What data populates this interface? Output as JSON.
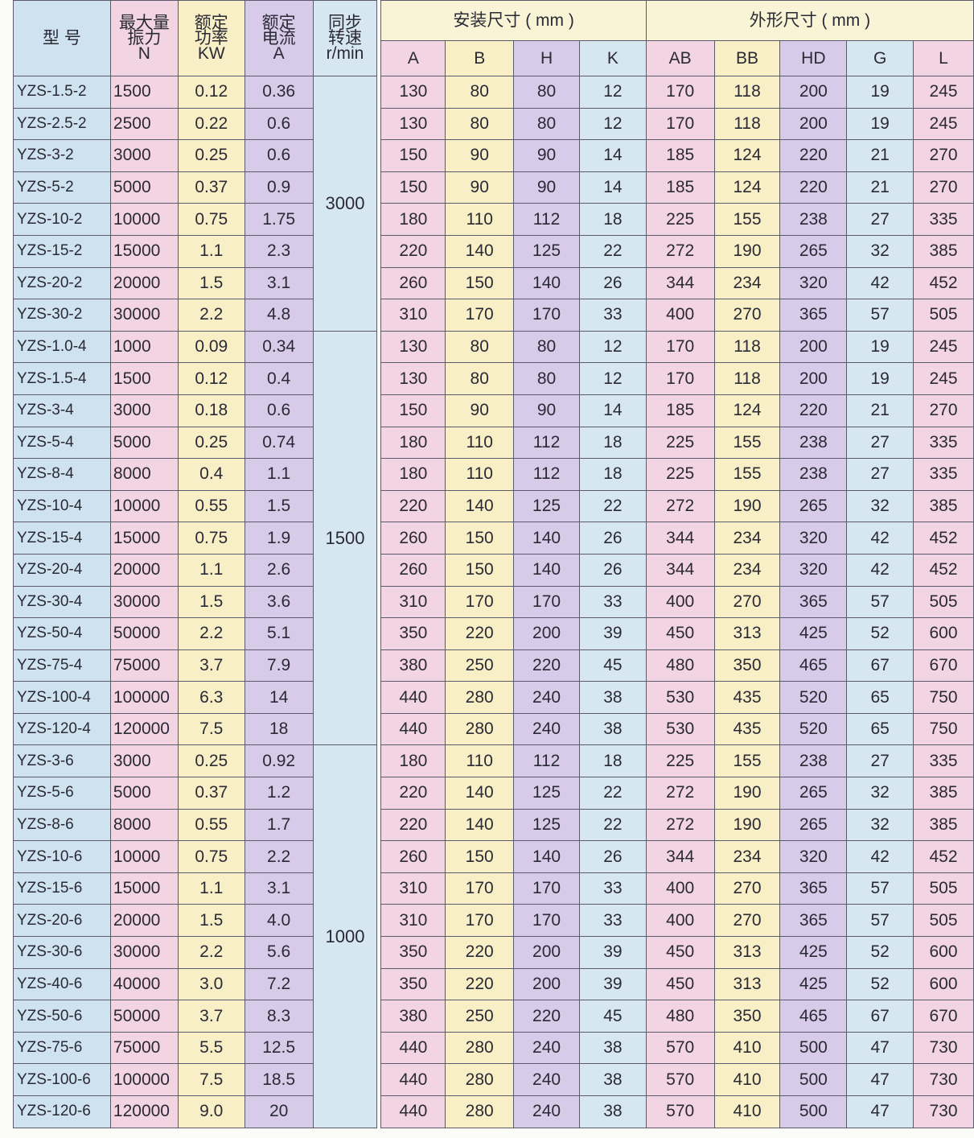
{
  "header": {
    "model": "型 号",
    "force": [
      "最大量",
      "振力",
      "N"
    ],
    "power": [
      "额定",
      "功率",
      "KW"
    ],
    "current": [
      "额定",
      "电流",
      "A"
    ],
    "speed": [
      "同步",
      "转速",
      "r/min"
    ],
    "install_group": "安装尺寸 ( mm )",
    "outline_group": "外形尺寸 ( mm )",
    "install_cols": [
      "A",
      "B",
      "H",
      "K"
    ],
    "outline_cols": [
      "AB",
      "BB",
      "HD",
      "G",
      "L"
    ]
  },
  "speed_groups": [
    {
      "speed": "3000",
      "rows": 8
    },
    {
      "speed": "1500",
      "rows": 13
    },
    {
      "speed": "1000",
      "rows": 12
    }
  ],
  "rows": [
    [
      "YZS-1.5-2",
      "1500",
      "0.12",
      "0.36",
      "130",
      "80",
      "80",
      "12",
      "170",
      "118",
      "200",
      "19",
      "245"
    ],
    [
      "YZS-2.5-2",
      "2500",
      "0.22",
      "0.6",
      "130",
      "80",
      "80",
      "12",
      "170",
      "118",
      "200",
      "19",
      "245"
    ],
    [
      "YZS-3-2",
      "3000",
      "0.25",
      "0.6",
      "150",
      "90",
      "90",
      "14",
      "185",
      "124",
      "220",
      "21",
      "270"
    ],
    [
      "YZS-5-2",
      "5000",
      "0.37",
      "0.9",
      "150",
      "90",
      "90",
      "14",
      "185",
      "124",
      "220",
      "21",
      "270"
    ],
    [
      "YZS-10-2",
      "10000",
      "0.75",
      "1.75",
      "180",
      "110",
      "112",
      "18",
      "225",
      "155",
      "238",
      "27",
      "335"
    ],
    [
      "YZS-15-2",
      "15000",
      "1.1",
      "2.3",
      "220",
      "140",
      "125",
      "22",
      "272",
      "190",
      "265",
      "32",
      "385"
    ],
    [
      "YZS-20-2",
      "20000",
      "1.5",
      "3.1",
      "260",
      "150",
      "140",
      "26",
      "344",
      "234",
      "320",
      "42",
      "452"
    ],
    [
      "YZS-30-2",
      "30000",
      "2.2",
      "4.8",
      "310",
      "170",
      "170",
      "33",
      "400",
      "270",
      "365",
      "57",
      "505"
    ],
    [
      "YZS-1.0-4",
      "1000",
      "0.09",
      "0.34",
      "130",
      "80",
      "80",
      "12",
      "170",
      "118",
      "200",
      "19",
      "245"
    ],
    [
      "YZS-1.5-4",
      "1500",
      "0.12",
      "0.4",
      "130",
      "80",
      "80",
      "12",
      "170",
      "118",
      "200",
      "19",
      "245"
    ],
    [
      "YZS-3-4",
      "3000",
      "0.18",
      "0.6",
      "150",
      "90",
      "90",
      "14",
      "185",
      "124",
      "220",
      "21",
      "270"
    ],
    [
      "YZS-5-4",
      "5000",
      "0.25",
      "0.74",
      "180",
      "110",
      "112",
      "18",
      "225",
      "155",
      "238",
      "27",
      "335"
    ],
    [
      "YZS-8-4",
      "8000",
      "0.4",
      "1.1",
      "180",
      "110",
      "112",
      "18",
      "225",
      "155",
      "238",
      "27",
      "335"
    ],
    [
      "YZS-10-4",
      "10000",
      "0.55",
      "1.5",
      "220",
      "140",
      "125",
      "22",
      "272",
      "190",
      "265",
      "32",
      "385"
    ],
    [
      "YZS-15-4",
      "15000",
      "0.75",
      "1.9",
      "260",
      "150",
      "140",
      "26",
      "344",
      "234",
      "320",
      "42",
      "452"
    ],
    [
      "YZS-20-4",
      "20000",
      "1.1",
      "2.6",
      "260",
      "150",
      "140",
      "26",
      "344",
      "234",
      "320",
      "42",
      "452"
    ],
    [
      "YZS-30-4",
      "30000",
      "1.5",
      "3.6",
      "310",
      "170",
      "170",
      "33",
      "400",
      "270",
      "365",
      "57",
      "505"
    ],
    [
      "YZS-50-4",
      "50000",
      "2.2",
      "5.1",
      "350",
      "220",
      "200",
      "39",
      "450",
      "313",
      "425",
      "52",
      "600"
    ],
    [
      "YZS-75-4",
      "75000",
      "3.7",
      "7.9",
      "380",
      "250",
      "220",
      "45",
      "480",
      "350",
      "465",
      "67",
      "670"
    ],
    [
      "YZS-100-4",
      "100000",
      "6.3",
      "14",
      "440",
      "280",
      "240",
      "38",
      "530",
      "435",
      "520",
      "65",
      "750"
    ],
    [
      "YZS-120-4",
      "120000",
      "7.5",
      "18",
      "440",
      "280",
      "240",
      "38",
      "530",
      "435",
      "520",
      "65",
      "750"
    ],
    [
      "YZS-3-6",
      "3000",
      "0.25",
      "0.92",
      "180",
      "110",
      "112",
      "18",
      "225",
      "155",
      "238",
      "27",
      "335"
    ],
    [
      "YZS-5-6",
      "5000",
      "0.37",
      "1.2",
      "220",
      "140",
      "125",
      "22",
      "272",
      "190",
      "265",
      "32",
      "385"
    ],
    [
      "YZS-8-6",
      "8000",
      "0.55",
      "1.7",
      "220",
      "140",
      "125",
      "22",
      "272",
      "190",
      "265",
      "32",
      "385"
    ],
    [
      "YZS-10-6",
      "10000",
      "0.75",
      "2.2",
      "260",
      "150",
      "140",
      "26",
      "344",
      "234",
      "320",
      "42",
      "452"
    ],
    [
      "YZS-15-6",
      "15000",
      "1.1",
      "3.1",
      "310",
      "170",
      "170",
      "33",
      "400",
      "270",
      "365",
      "57",
      "505"
    ],
    [
      "YZS-20-6",
      "20000",
      "1.5",
      "4.0",
      "310",
      "170",
      "170",
      "33",
      "400",
      "270",
      "365",
      "57",
      "505"
    ],
    [
      "YZS-30-6",
      "30000",
      "2.2",
      "5.6",
      "350",
      "220",
      "200",
      "39",
      "450",
      "313",
      "425",
      "52",
      "600"
    ],
    [
      "YZS-40-6",
      "40000",
      "3.0",
      "7.2",
      "350",
      "220",
      "200",
      "39",
      "450",
      "313",
      "425",
      "52",
      "600"
    ],
    [
      "YZS-50-6",
      "50000",
      "3.7",
      "8.3",
      "380",
      "250",
      "220",
      "45",
      "480",
      "350",
      "465",
      "67",
      "670"
    ],
    [
      "YZS-75-6",
      "75000",
      "5.5",
      "12.5",
      "440",
      "280",
      "240",
      "38",
      "570",
      "410",
      "500",
      "47",
      "730"
    ],
    [
      "YZS-100-6",
      "100000",
      "7.5",
      "18.5",
      "440",
      "280",
      "240",
      "38",
      "570",
      "410",
      "500",
      "47",
      "730"
    ],
    [
      "YZS-120-6",
      "120000",
      "9.0",
      "20",
      "440",
      "280",
      "240",
      "38",
      "570",
      "410",
      "500",
      "47",
      "730"
    ]
  ]
}
